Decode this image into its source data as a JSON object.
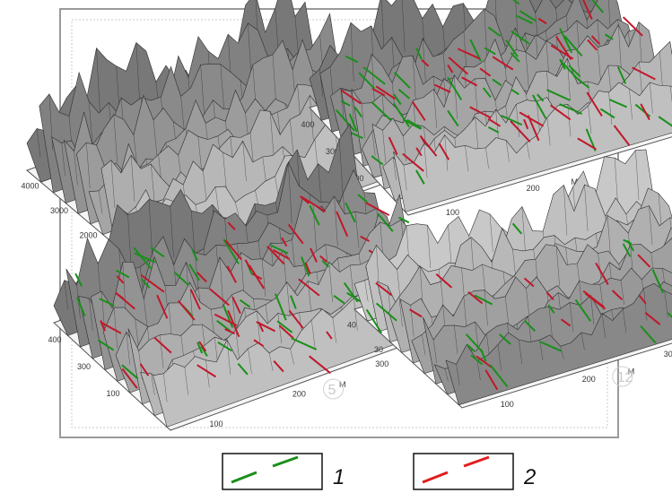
{
  "panels": [
    {
      "id": "a",
      "overlay": false,
      "shade": "#8a8a8a",
      "ticks_y": [
        "4000",
        "3000",
        "2000",
        "100"
      ],
      "ticks_x": [
        "",
        "100",
        "200"
      ],
      "axis_letter": "M",
      "badge": ""
    },
    {
      "id": "b",
      "overlay": true,
      "shade": "#9a9a9a",
      "ticks_y": [
        "400",
        "300",
        "200"
      ],
      "ticks_x": [
        "100",
        "200",
        "300"
      ],
      "axis_letter": "M",
      "badge": ""
    },
    {
      "id": "c",
      "overlay": true,
      "shade": "#a0a0a0",
      "ticks_y": [
        "400",
        "300",
        "100"
      ],
      "ticks_x": [
        "100",
        "200",
        "300"
      ],
      "axis_letter": "M",
      "badge": "5"
    },
    {
      "id": "d",
      "overlay": true,
      "shade": "#c4c4c4",
      "ticks_y": [
        "40",
        "30"
      ],
      "ticks_x": [
        "100",
        "200",
        "300",
        "400"
      ],
      "axis_letter": "M",
      "badge": "12"
    }
  ],
  "legend": [
    {
      "label": "1",
      "color": "#1a8f1a"
    },
    {
      "label": "2",
      "color": "#e01e1e"
    }
  ],
  "colors": {
    "green_lineament": "#1a8f1a",
    "red_lineament": "#c0182a",
    "terrain_dark": "#3a3a3a",
    "terrain_light": "#e6e6e6"
  }
}
